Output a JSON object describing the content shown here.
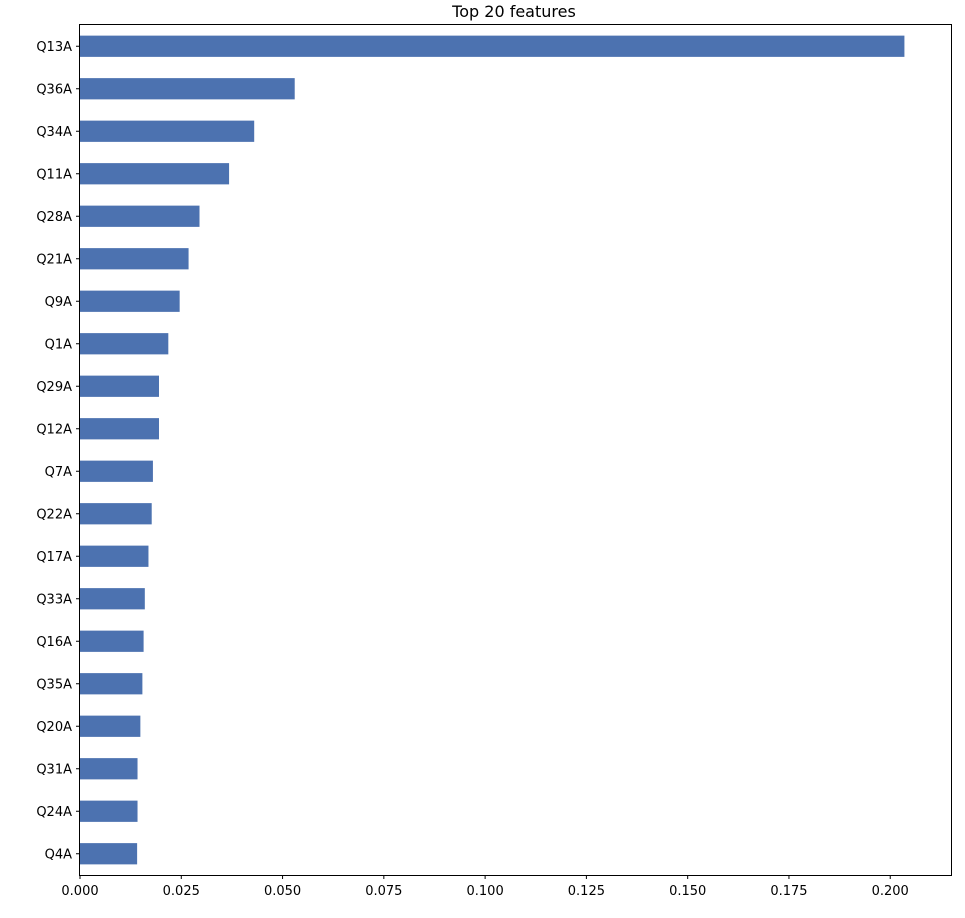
{
  "chart_data": {
    "type": "bar",
    "orientation": "horizontal",
    "title": "Top 20 features",
    "xlabel": "",
    "ylabel": "",
    "xlim": [
      0,
      0.215
    ],
    "grid": false,
    "legend": "none",
    "bar_color": "#4c72b0",
    "categories": [
      "Q13A",
      "Q36A",
      "Q34A",
      "Q11A",
      "Q28A",
      "Q21A",
      "Q9A",
      "Q1A",
      "Q29A",
      "Q12A",
      "Q7A",
      "Q22A",
      "Q17A",
      "Q33A",
      "Q16A",
      "Q35A",
      "Q20A",
      "Q31A",
      "Q24A",
      "Q4A"
    ],
    "values": [
      0.2035,
      0.053,
      0.043,
      0.0368,
      0.0295,
      0.0268,
      0.0246,
      0.0218,
      0.0195,
      0.0195,
      0.018,
      0.0177,
      0.0169,
      0.016,
      0.0157,
      0.0154,
      0.0149,
      0.0142,
      0.0142,
      0.0141
    ],
    "xticks": [
      "0.000",
      "0.025",
      "0.050",
      "0.075",
      "0.100",
      "0.125",
      "0.150",
      "0.175",
      "0.200"
    ]
  }
}
